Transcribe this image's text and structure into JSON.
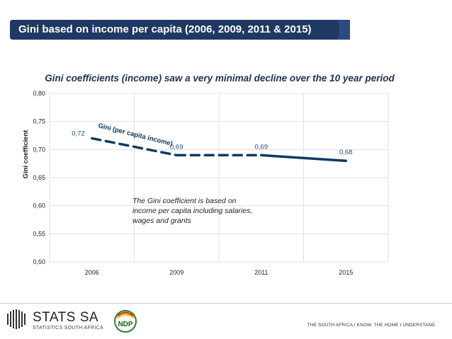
{
  "banner": {
    "title": "Gini based on income per capita (2006, 2009, 2011 & 2015)"
  },
  "chart_data": {
    "type": "line",
    "title": "Gini coefficients (income) saw a very minimal decline over the 10 year period",
    "xlabel": "",
    "ylabel": "Gini coefficient",
    "categories": [
      "2006",
      "2009",
      "2011",
      "2015"
    ],
    "series": [
      {
        "name": "Gini (per capita income)",
        "values": [
          0.72,
          0.69,
          0.69,
          0.68
        ]
      }
    ],
    "data_labels": [
      "0,72",
      "0,69",
      "0,69",
      "0,68"
    ],
    "ylim": [
      0.5,
      0.8
    ],
    "yticks": [
      0.5,
      0.55,
      0.6,
      0.65,
      0.7,
      0.75,
      0.8
    ],
    "ytick_labels": [
      "0,50",
      "0,55",
      "0,60",
      "0,65",
      "0,70",
      "0,75",
      "0,80"
    ],
    "grid": true,
    "series_label_text": "Gini (per capita income)",
    "annotation": "The Gini coefficient is based on income per capita including salaries, wages and grants",
    "line_color": "#0b3b62"
  },
  "footer": {
    "logo_name": "STATS SA",
    "logo_sub": "STATISTICS SOUTH AFRICA",
    "ndp_label": "NDP",
    "tagline": "THE SOUTH AFRICA I KNOW, THE HOME I UNDERSTAND"
  },
  "colors": {
    "banner": "#1f3864",
    "line": "#0b3b62",
    "subtitle": "#1f3050"
  }
}
